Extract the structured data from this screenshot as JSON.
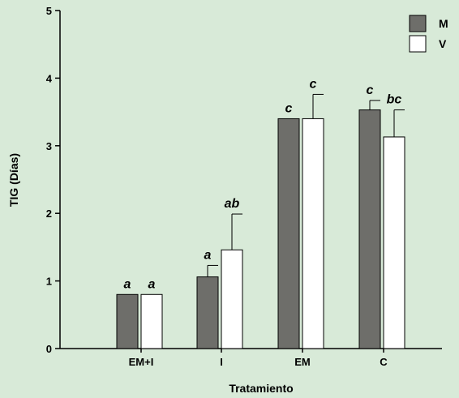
{
  "chart_data": {
    "type": "bar",
    "title": "",
    "xlabel": "Tratamiento",
    "ylabel": "TIG (Días)",
    "ylim": [
      0,
      5
    ],
    "yticks": [
      "0",
      "1",
      "2",
      "3",
      "4",
      "5"
    ],
    "categories": [
      "EM+I",
      "I",
      "EM",
      "C"
    ],
    "legend_position": "top-right",
    "grid": false,
    "series": [
      {
        "name": "M",
        "color": "#6e6e6a",
        "values": [
          0.8,
          1.06,
          3.4,
          3.53
        ],
        "error": [
          0.0,
          0.17,
          0.0,
          0.14
        ],
        "labels": [
          "a",
          "a",
          "c",
          "c"
        ]
      },
      {
        "name": "V",
        "color": "#ffffff",
        "values": [
          0.8,
          1.46,
          3.4,
          3.13
        ],
        "error": [
          0.0,
          0.53,
          0.36,
          0.4
        ],
        "labels": [
          "a",
          "ab",
          "c",
          "bc"
        ]
      }
    ]
  }
}
